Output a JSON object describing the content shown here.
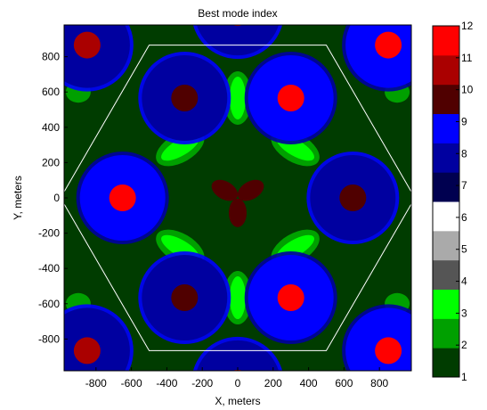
{
  "chart_data": {
    "type": "heatmap",
    "title": "Best mode index",
    "xlabel": "X, meters",
    "ylabel": "Y, meters",
    "xlim": [
      -980,
      980
    ],
    "ylim": [
      -980,
      980
    ],
    "xticks": [
      -800,
      -600,
      -400,
      -200,
      0,
      200,
      400,
      600,
      800
    ],
    "yticks": [
      800,
      600,
      400,
      200,
      0,
      -200,
      -400,
      -600,
      -800
    ],
    "grid": false,
    "colorbar": {
      "placement": "right",
      "min": 1,
      "max": 12,
      "ticks": [
        12,
        11,
        10,
        9,
        8,
        7,
        6,
        5,
        4,
        3,
        2,
        1
      ],
      "colors": [
        "#003c00",
        "#00a000",
        "#00ff00",
        "#555555",
        "#aaaaaa",
        "#ffffff",
        "#000050",
        "#0000a0",
        "#0000ff",
        "#500000",
        "#aa0000",
        "#ff0000"
      ]
    },
    "hexagon": {
      "vertices": [
        [
          -1000,
          0
        ],
        [
          -500,
          866
        ],
        [
          500,
          866
        ],
        [
          1000,
          0
        ],
        [
          500,
          -866
        ],
        [
          -500,
          -866
        ]
      ],
      "color": "#ffffff"
    },
    "sites": [
      {
        "x": -300,
        "y": 566,
        "core_value": 10,
        "cell_value": 8
      },
      {
        "x": 300,
        "y": 566,
        "core_value": 12,
        "cell_value": 9
      },
      {
        "x": -650,
        "y": 0,
        "core_value": 12,
        "cell_value": 9
      },
      {
        "x": 650,
        "y": 0,
        "core_value": 10,
        "cell_value": 8
      },
      {
        "x": -300,
        "y": -566,
        "core_value": 10,
        "cell_value": 8
      },
      {
        "x": 300,
        "y": -566,
        "core_value": 12,
        "cell_value": 9
      },
      {
        "x": -850,
        "y": 866,
        "core_value": 11,
        "cell_value": 8
      },
      {
        "x": 850,
        "y": 866,
        "core_value": 12,
        "cell_value": 9
      },
      {
        "x": -850,
        "y": -866,
        "core_value": 11,
        "cell_value": 8
      },
      {
        "x": 850,
        "y": -866,
        "core_value": 12,
        "cell_value": 9
      },
      {
        "x": 0,
        "y": 1050,
        "core_value": 11,
        "cell_value": 8
      },
      {
        "x": 0,
        "y": -1050,
        "core_value": 11,
        "cell_value": 8
      }
    ],
    "background_value": 1,
    "center_lobes": {
      "value": 10,
      "angles_deg": [
        150,
        30,
        270
      ]
    }
  }
}
